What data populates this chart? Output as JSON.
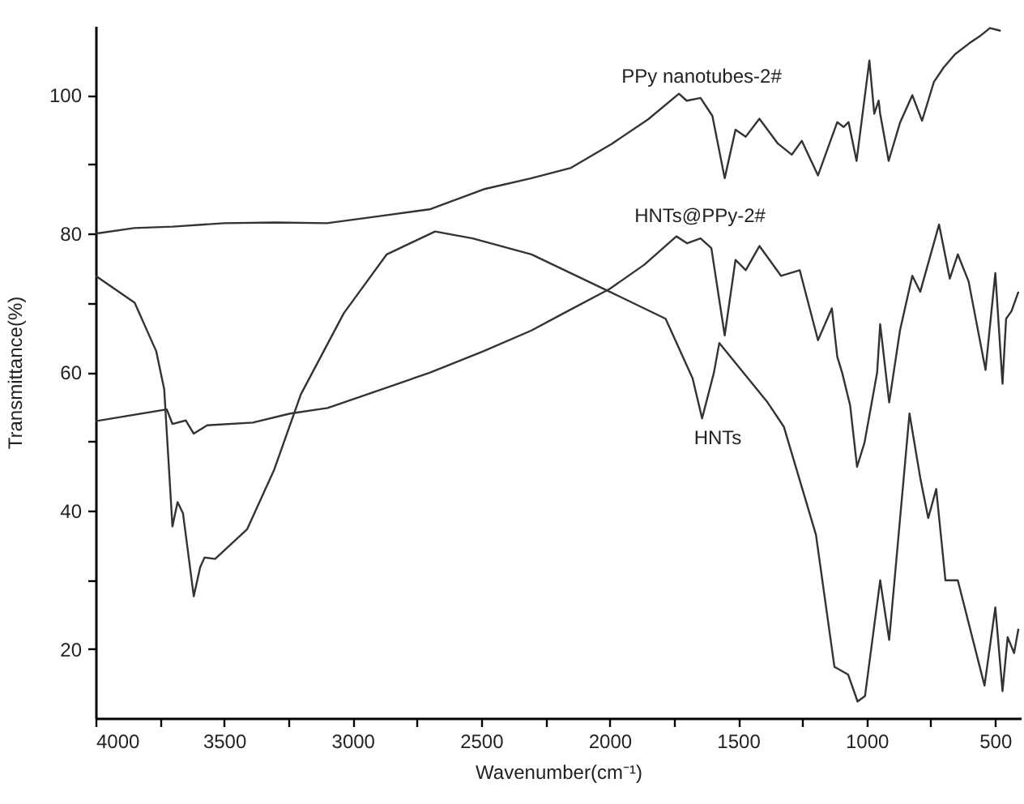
{
  "chart_data": {
    "type": "line",
    "xlabel": "Wavenumber(cm⁻¹)",
    "ylabel": "Transmittance(%)",
    "xlim": [
      4000,
      400
    ],
    "ylim": [
      10,
      110
    ],
    "xticks": [
      4000,
      {
        "value": 3750,
        "label": null
      },
      3500,
      {
        "value": 3250,
        "label": null
      },
      3000,
      {
        "value": 2750,
        "label": null
      },
      2500,
      {
        "value": 2250,
        "label": null
      },
      2000,
      {
        "value": 1750,
        "label": null
      },
      1500,
      {
        "value": 1250,
        "label": null
      },
      1000,
      {
        "value": 750,
        "label": null
      },
      500
    ],
    "yticks": [
      20,
      {
        "value": 30,
        "label": null
      },
      40,
      {
        "value": 50,
        "label": null
      },
      60,
      {
        "value": 70,
        "label": null
      },
      80,
      {
        "value": 90,
        "label": null
      },
      100
    ],
    "grid": false,
    "marker": "none",
    "line_style": "solid",
    "series": [
      {
        "color": "#333333",
        "x": [
          4000,
          3850,
          3700,
          3500,
          3300,
          3100,
          2900,
          2700,
          2490,
          2304,
          2150,
          1990,
          1850,
          1730,
          1700,
          1646,
          1600,
          1552,
          1510,
          1470,
          1417,
          1345,
          1291,
          1252,
          1189,
          1114,
          1089,
          1070,
          1039,
          989,
          970,
          953,
          947,
          914,
          870,
          822,
          784,
          738,
          700,
          656,
          600,
          560,
          520,
          478
        ],
        "values": [
          80,
          80.8,
          81,
          81.5,
          81.6,
          81.5,
          82.5,
          83.5,
          86.4,
          88,
          89.5,
          93,
          96.5,
          100.2,
          99.2,
          99.6,
          97,
          88,
          95,
          94,
          96.6,
          93,
          91.4,
          93.4,
          88.4,
          96.1,
          95.4,
          96.1,
          90.5,
          105,
          97.3,
          99.2,
          97.3,
          90.5,
          96,
          100,
          96.3,
          101.9,
          104,
          105.9,
          107.5,
          108.5,
          109.7,
          109.3
        ]
      },
      {
        "color": "#333333",
        "x": [
          4000,
          3723,
          3701,
          3649,
          3618,
          3566,
          3388,
          3243,
          3097,
          2700,
          2491,
          2304,
          2178,
          2000,
          1865,
          1740,
          1698,
          1646,
          1604,
          1552,
          1510,
          1470,
          1417,
          1333,
          1260,
          1189,
          1135,
          1114,
          1095,
          1064,
          1037,
          1008,
          959,
          947,
          912,
          870,
          822,
          791,
          718,
          676,
          645,
          603,
          537,
          499,
          471,
          457,
          436,
          409
        ],
        "values": [
          52.9,
          54.6,
          52.5,
          53,
          51.1,
          52.3,
          52.7,
          54,
          54.8,
          59.9,
          63,
          66,
          68.5,
          72,
          75.5,
          79.6,
          78.6,
          79.3,
          77.9,
          65.3,
          76.2,
          74.7,
          78.2,
          73.9,
          74.7,
          64.6,
          69.2,
          62.2,
          59.9,
          55.2,
          46.3,
          49.8,
          59.9,
          66.9,
          55.6,
          66,
          73.9,
          71.6,
          81.3,
          73.5,
          77,
          73.1,
          60.3,
          74.3,
          58.3,
          67.7,
          68.8,
          71.6
        ]
      },
      {
        "color": "#333333",
        "x": [
          4000,
          3848,
          3764,
          3733,
          3701,
          3681,
          3660,
          3618,
          3593,
          3576,
          3535,
          3410,
          3305,
          3201,
          3034,
          2867,
          2679,
          2533,
          2304,
          2000,
          1782,
          1677,
          1640,
          1594,
          1573,
          1385,
          1322,
          1197,
          1125,
          1072,
          1035,
          1006,
          947,
          912,
          833,
          791,
          760,
          729,
          693,
          645,
          541,
          499,
          471,
          451,
          426,
          409
        ],
        "values": [
          73.9,
          70,
          63,
          57.5,
          37.7,
          41.2,
          39.6,
          27.6,
          31.8,
          33.2,
          33,
          37.3,
          45.9,
          56.8,
          68.5,
          77,
          80.3,
          79.3,
          77,
          71.6,
          67.7,
          59.1,
          53.3,
          59.9,
          64.2,
          55.6,
          52.1,
          36.5,
          17.4,
          16.3,
          12.4,
          13.2,
          29.9,
          21.3,
          54,
          44.7,
          38.9,
          43.1,
          29.9,
          29.9,
          14.7,
          26,
          13.9,
          21.7,
          19.4,
          22.9
        ]
      }
    ],
    "annotations": [
      "PPy nanotubes-2#",
      "HNTs@PPy-2#",
      "HNTs"
    ]
  }
}
